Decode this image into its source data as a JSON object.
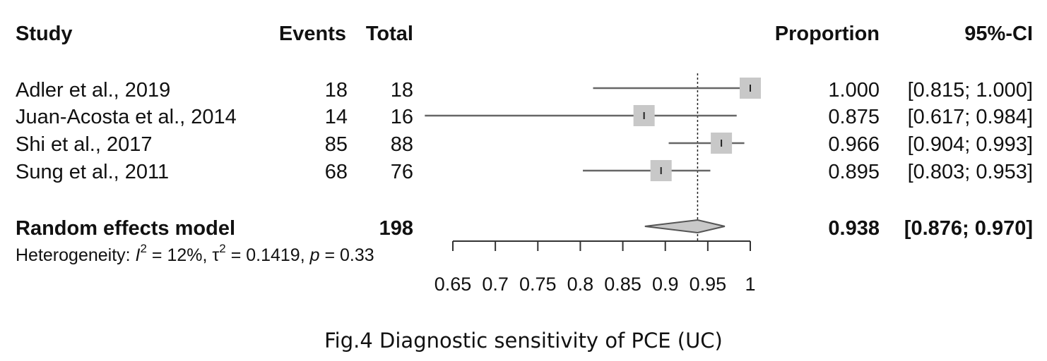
{
  "headers": {
    "study": "Study",
    "events": "Events",
    "total": "Total",
    "proportion": "Proportion",
    "ci": "95%-CI"
  },
  "studies": [
    {
      "name": "Adler et al., 2019",
      "events": "18",
      "total": "18",
      "proportion": "1.000",
      "ci": "[0.815; 1.000]"
    },
    {
      "name": "Juan-Acosta et al., 2014",
      "events": "14",
      "total": "16",
      "proportion": "0.875",
      "ci": "[0.617; 0.984]"
    },
    {
      "name": "Shi et al., 2017",
      "events": "85",
      "total": "88",
      "proportion": "0.966",
      "ci": "[0.904; 0.993]"
    },
    {
      "name": "Sung et al., 2011",
      "events": "68",
      "total": "76",
      "proportion": "0.895",
      "ci": "[0.803; 0.953]"
    }
  ],
  "pooled": {
    "label": "Random effects model",
    "total": "198",
    "proportion": "0.938",
    "ci": "[0.876; 0.970]"
  },
  "heterogeneity": {
    "prefix": "Heterogeneity: ",
    "i_symbol": "I",
    "i_sup": "2",
    "i_value": " = 12%, ",
    "tau_symbol": "τ",
    "tau_sup": "2",
    "tau_value": " = 0.1419, ",
    "p_symbol": "p",
    "p_value": " = 0.33"
  },
  "caption": "Fig.4 Diagnostic sensitivity of PCE (UC)",
  "chart_data": {
    "type": "forest",
    "xlim": [
      0.65,
      1.0
    ],
    "xticks": [
      0.65,
      0.7,
      0.75,
      0.8,
      0.85,
      0.9,
      0.95,
      1.0
    ],
    "xtick_labels": [
      "0.65",
      "0.7",
      "0.75",
      "0.8",
      "0.85",
      "0.9",
      "0.95",
      "1"
    ],
    "reference_line": 0.938,
    "studies": [
      {
        "name": "Adler et al., 2019",
        "estimate": 1.0,
        "lower": 0.815,
        "upper": 1.0
      },
      {
        "name": "Juan-Acosta et al., 2014",
        "estimate": 0.875,
        "lower": 0.617,
        "upper": 0.984
      },
      {
        "name": "Shi et al., 2017",
        "estimate": 0.966,
        "lower": 0.904,
        "upper": 0.993
      },
      {
        "name": "Sung et al., 2011",
        "estimate": 0.895,
        "lower": 0.803,
        "upper": 0.953
      }
    ],
    "pooled": {
      "name": "Random effects model",
      "estimate": 0.938,
      "lower": 0.876,
      "upper": 0.97
    }
  }
}
